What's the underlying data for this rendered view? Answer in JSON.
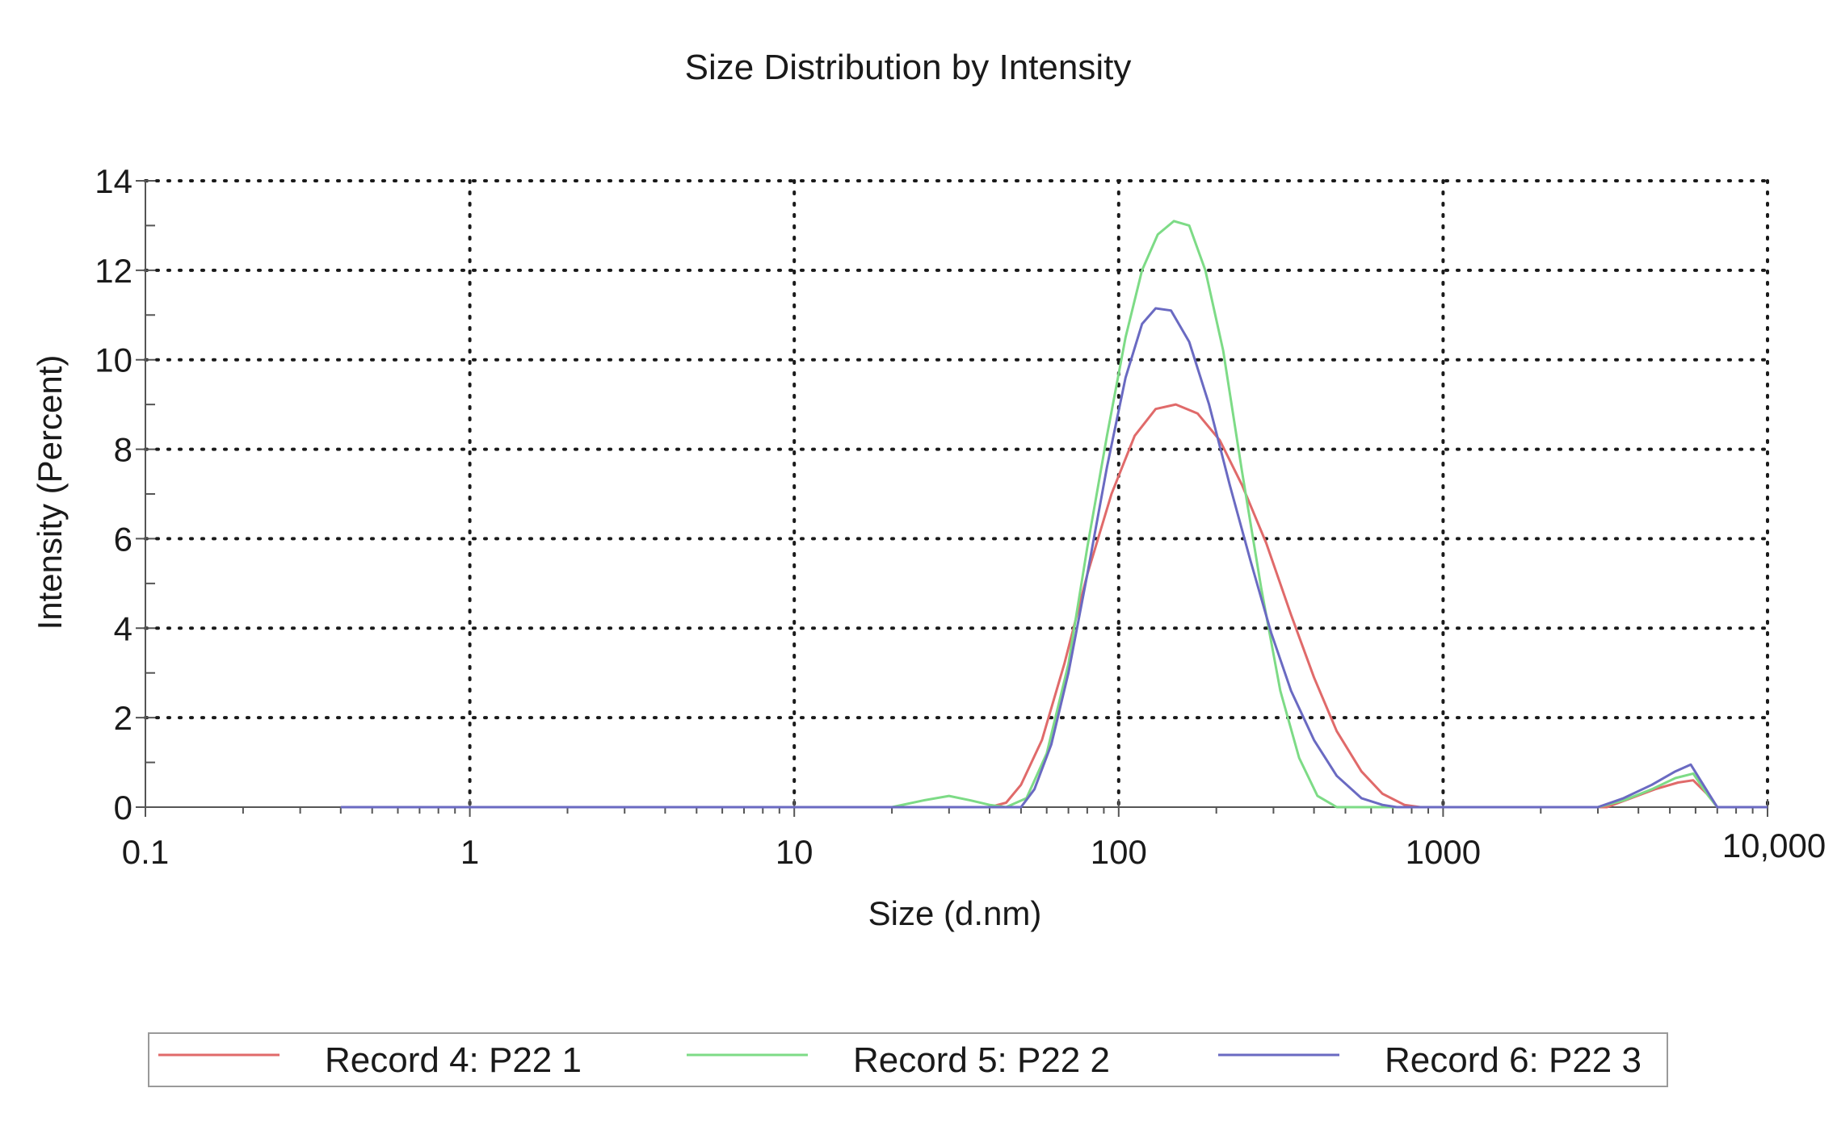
{
  "chart_data": {
    "type": "line",
    "title": "Size Distribution by Intensity",
    "xlabel": "Size (d.nm)",
    "ylabel": "Intensity (Percent)",
    "x_scale": "log",
    "xlim": [
      0.1,
      10000
    ],
    "ylim": [
      0,
      14
    ],
    "grid": true,
    "legend_position": "bottom",
    "x_ticks": [
      {
        "value": 0.1,
        "label": "0.1"
      },
      {
        "value": 1,
        "label": "1"
      },
      {
        "value": 10,
        "label": "10"
      },
      {
        "value": 100,
        "label": "100"
      },
      {
        "value": 1000,
        "label": "1000"
      },
      {
        "value": 10000,
        "label": "10,000"
      }
    ],
    "y_ticks": [
      {
        "value": 0,
        "label": "0"
      },
      {
        "value": 2,
        "label": "2"
      },
      {
        "value": 4,
        "label": "4"
      },
      {
        "value": 6,
        "label": "6"
      },
      {
        "value": 8,
        "label": "8"
      },
      {
        "value": 10,
        "label": "10"
      },
      {
        "value": 12,
        "label": "12"
      },
      {
        "value": 14,
        "label": "14"
      }
    ],
    "series": [
      {
        "name": "Record 4: P22 1",
        "color": "#e06a6a",
        "points": [
          [
            0.4,
            0
          ],
          [
            40,
            0
          ],
          [
            45,
            0.1
          ],
          [
            50,
            0.5
          ],
          [
            58,
            1.5
          ],
          [
            68,
            3.2
          ],
          [
            80,
            5.2
          ],
          [
            95,
            7.0
          ],
          [
            112,
            8.3
          ],
          [
            130,
            8.9
          ],
          [
            150,
            9.0
          ],
          [
            175,
            8.8
          ],
          [
            205,
            8.2
          ],
          [
            240,
            7.2
          ],
          [
            285,
            5.9
          ],
          [
            340,
            4.3
          ],
          [
            400,
            2.9
          ],
          [
            470,
            1.7
          ],
          [
            560,
            0.8
          ],
          [
            650,
            0.3
          ],
          [
            760,
            0.05
          ],
          [
            850,
            0
          ],
          [
            3200,
            0
          ],
          [
            3800,
            0.2
          ],
          [
            4500,
            0.4
          ],
          [
            5300,
            0.55
          ],
          [
            5900,
            0.6
          ],
          [
            6500,
            0.3
          ],
          [
            7000,
            0
          ],
          [
            10000,
            0
          ]
        ]
      },
      {
        "name": "Record 5: P22 2",
        "color": "#7ddb86",
        "points": [
          [
            0.4,
            0
          ],
          [
            20,
            0
          ],
          [
            25,
            0.15
          ],
          [
            30,
            0.25
          ],
          [
            35,
            0.15
          ],
          [
            40,
            0.05
          ],
          [
            45,
            0
          ],
          [
            52,
            0.2
          ],
          [
            60,
            1.2
          ],
          [
            70,
            3.2
          ],
          [
            80,
            5.8
          ],
          [
            92,
            8.3
          ],
          [
            105,
            10.5
          ],
          [
            118,
            12.0
          ],
          [
            132,
            12.8
          ],
          [
            148,
            13.1
          ],
          [
            165,
            13.0
          ],
          [
            185,
            12.0
          ],
          [
            210,
            10.2
          ],
          [
            240,
            7.5
          ],
          [
            275,
            4.9
          ],
          [
            315,
            2.6
          ],
          [
            360,
            1.1
          ],
          [
            410,
            0.25
          ],
          [
            470,
            0
          ],
          [
            3000,
            0
          ],
          [
            3600,
            0.15
          ],
          [
            4400,
            0.4
          ],
          [
            5200,
            0.65
          ],
          [
            5900,
            0.75
          ],
          [
            6500,
            0.3
          ],
          [
            7000,
            0
          ],
          [
            10000,
            0
          ]
        ]
      },
      {
        "name": "Record 6: P22 3",
        "color": "#6a6ac2",
        "points": [
          [
            0.4,
            0
          ],
          [
            50,
            0
          ],
          [
            55,
            0.4
          ],
          [
            62,
            1.4
          ],
          [
            70,
            3.0
          ],
          [
            80,
            5.2
          ],
          [
            92,
            7.6
          ],
          [
            105,
            9.6
          ],
          [
            118,
            10.8
          ],
          [
            130,
            11.15
          ],
          [
            145,
            11.1
          ],
          [
            165,
            10.4
          ],
          [
            190,
            9.0
          ],
          [
            220,
            7.2
          ],
          [
            255,
            5.5
          ],
          [
            295,
            3.9
          ],
          [
            340,
            2.6
          ],
          [
            400,
            1.5
          ],
          [
            470,
            0.7
          ],
          [
            560,
            0.2
          ],
          [
            650,
            0.05
          ],
          [
            720,
            0
          ],
          [
            3000,
            0
          ],
          [
            3600,
            0.2
          ],
          [
            4400,
            0.5
          ],
          [
            5200,
            0.8
          ],
          [
            5800,
            0.95
          ],
          [
            6400,
            0.45
          ],
          [
            7000,
            0
          ],
          [
            10000,
            0
          ]
        ]
      }
    ]
  },
  "legend_line_label": "legend"
}
